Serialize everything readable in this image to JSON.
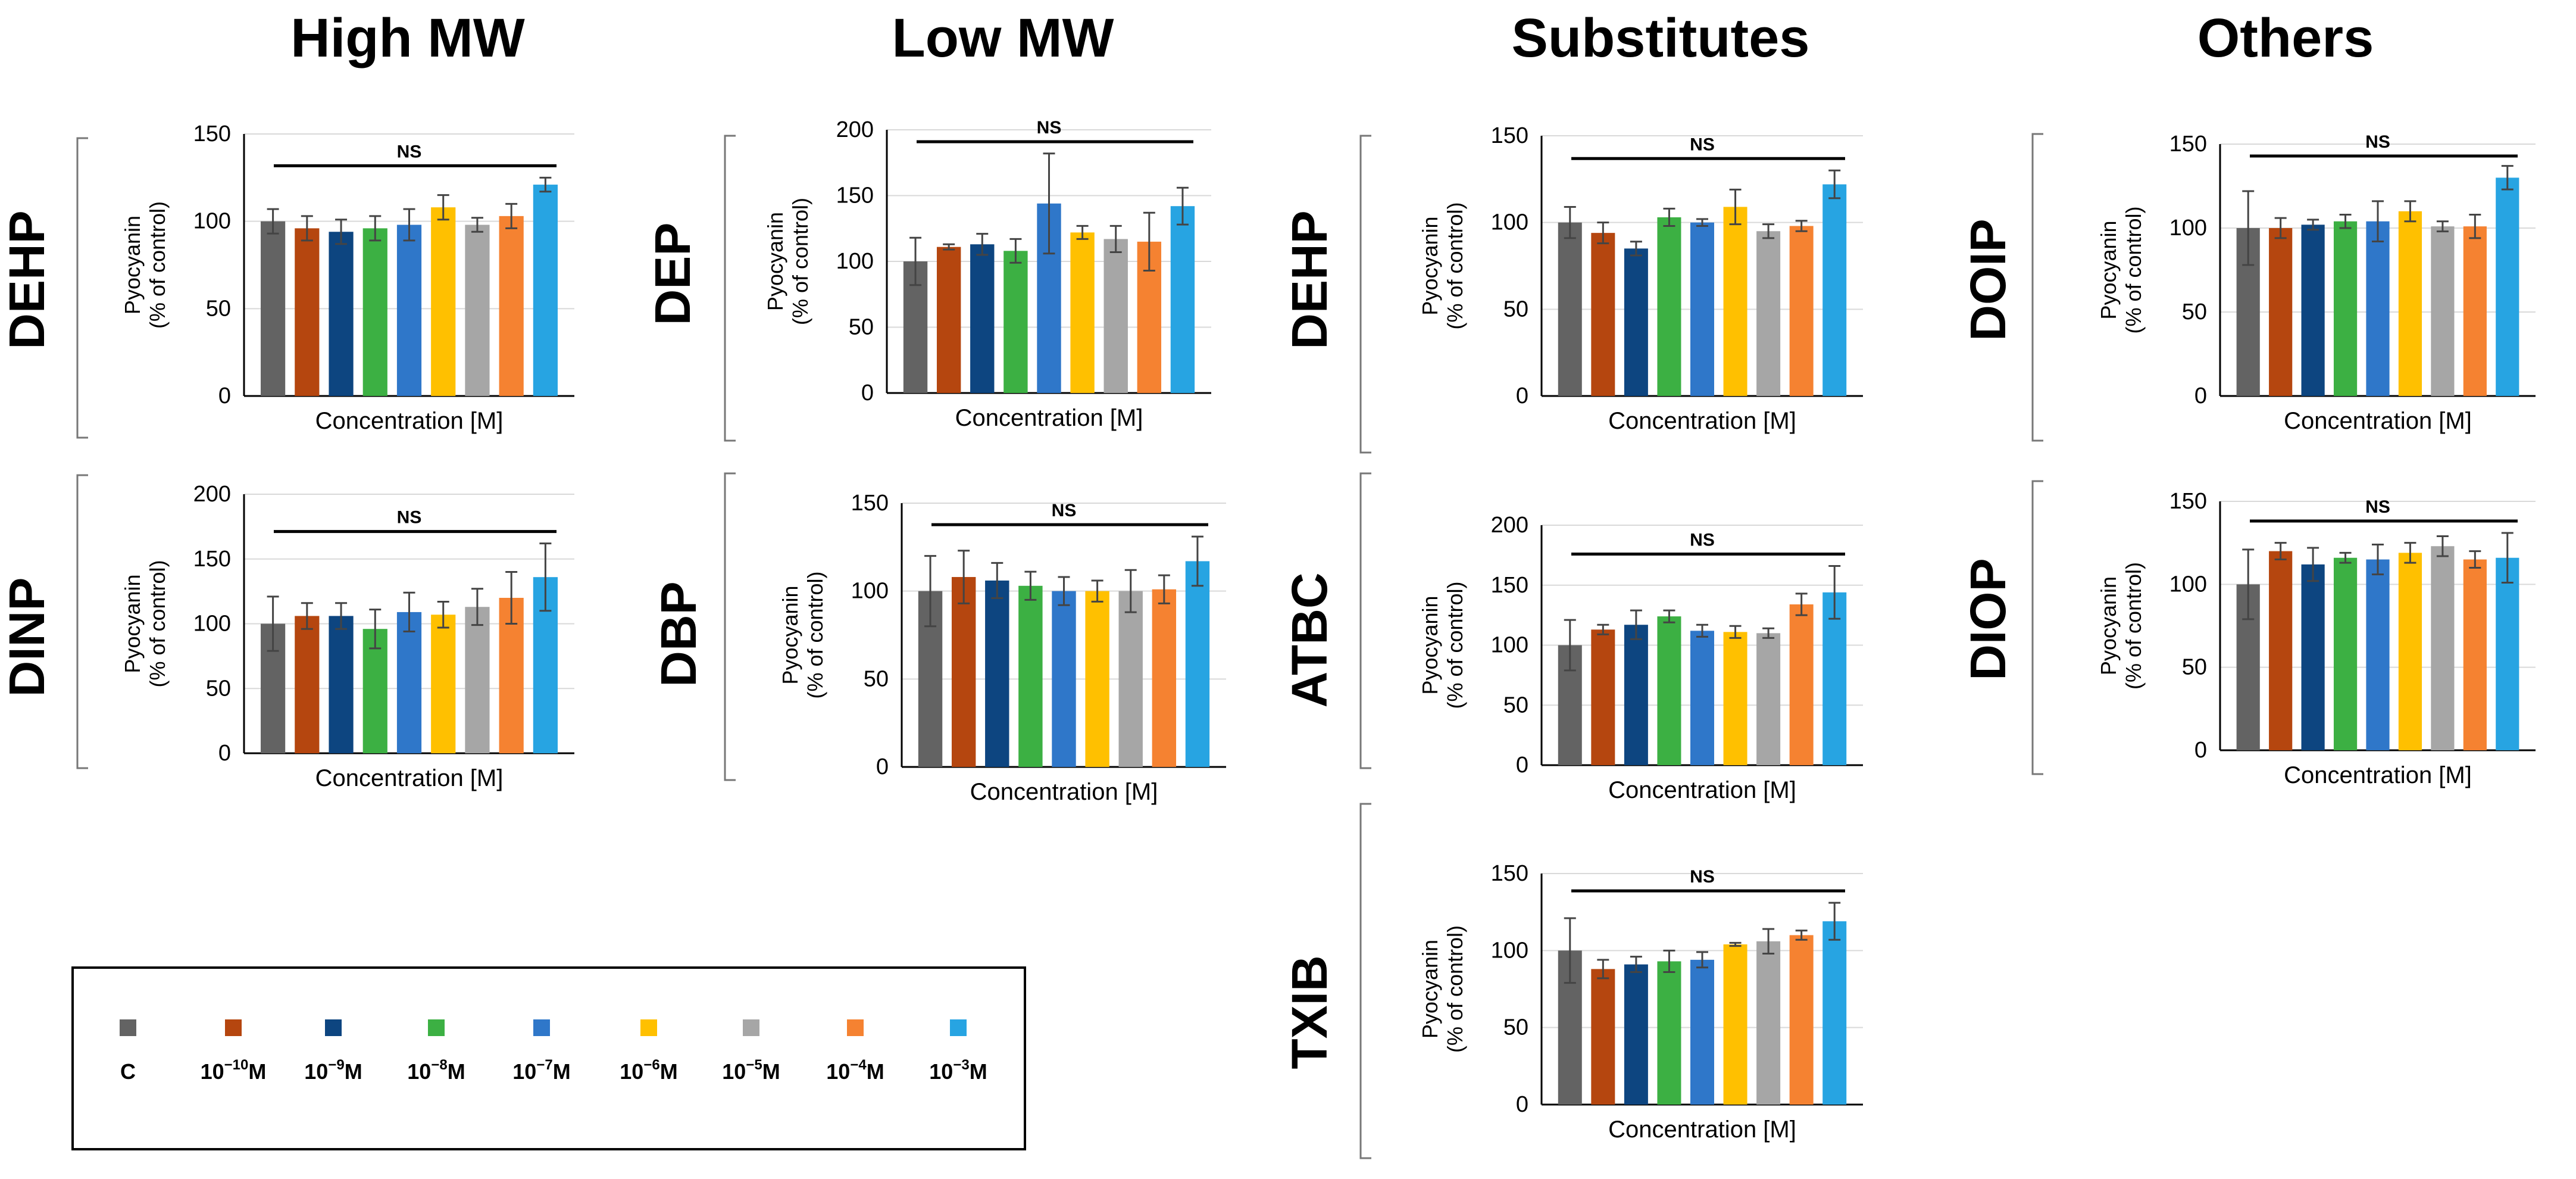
{
  "figure": {
    "group_headings": [
      "High MW",
      "Low MW",
      "Substitutes",
      "Others"
    ],
    "y_axis_label": [
      "Pyocyanin",
      "(% of control)"
    ],
    "x_axis_label": "Concentration [M]",
    "significance_label": "NS"
  },
  "legend": {
    "items": [
      {
        "label": "C",
        "sup": "",
        "color": "#636363"
      },
      {
        "label": "10",
        "sup": "−10",
        "unit": "M",
        "color": "#b5460f"
      },
      {
        "label": "10",
        "sup": "−9",
        "unit": "M",
        "color": "#0d4580"
      },
      {
        "label": "10",
        "sup": "−8",
        "unit": "M",
        "color": "#3cb043"
      },
      {
        "label": "10",
        "sup": "−7",
        "unit": "M",
        "color": "#2f77c9"
      },
      {
        "label": "10",
        "sup": "−6",
        "unit": "M",
        "color": "#ffc000"
      },
      {
        "label": "10",
        "sup": "−5",
        "unit": "M",
        "color": "#a6a6a6"
      },
      {
        "label": "10",
        "sup": "−4",
        "unit": "M",
        "color": "#f58231"
      },
      {
        "label": "10",
        "sup": "−3",
        "unit": "M",
        "color": "#27a4e2"
      }
    ]
  },
  "chart_data": [
    {
      "type": "bar",
      "group": "High MW",
      "compound": "DEHP",
      "title": "DEHP",
      "xlabel": "Concentration [M]",
      "ylabel": "Pyocyanin (% of control)",
      "ylim": [
        0,
        150
      ],
      "yticks": [
        0,
        50,
        100,
        150
      ],
      "series": [
        {
          "name": "Pyocyanin",
          "values": [
            100,
            96,
            94,
            96,
            98,
            108,
            98,
            103,
            121
          ],
          "errors": [
            7,
            7,
            7,
            7,
            9,
            7,
            4,
            7,
            4
          ]
        }
      ],
      "annotation": "NS"
    },
    {
      "type": "bar",
      "group": "High MW",
      "compound": "DINP",
      "title": "DINP",
      "xlabel": "Concentration [M]",
      "ylabel": "Pyocyanin (% of control)",
      "ylim": [
        0,
        200
      ],
      "yticks": [
        0,
        50,
        100,
        150,
        200
      ],
      "series": [
        {
          "name": "Pyocyanin",
          "values": [
            100,
            106,
            106,
            96,
            109,
            107,
            113,
            120,
            136
          ],
          "errors": [
            21,
            10,
            10,
            15,
            15,
            10,
            14,
            20,
            26
          ]
        }
      ],
      "annotation": "NS"
    },
    {
      "type": "bar",
      "group": "Low MW",
      "compound": "DEP",
      "title": "DEP",
      "xlabel": "Concentration [M]",
      "ylabel": "Pyocyanin (% of control)",
      "ylim": [
        0,
        200
      ],
      "yticks": [
        0,
        50,
        100,
        150,
        200
      ],
      "series": [
        {
          "name": "Pyocyanin",
          "values": [
            100,
            111,
            113,
            108,
            144,
            122,
            117,
            115,
            142
          ],
          "errors": [
            18,
            2,
            8,
            9,
            38,
            5,
            10,
            22,
            14
          ]
        }
      ],
      "annotation": "NS"
    },
    {
      "type": "bar",
      "group": "Low MW",
      "compound": "DBP",
      "title": "DBP",
      "xlabel": "Concentration [M]",
      "ylabel": "Pyocyanin (% of control)",
      "ylim": [
        0,
        150
      ],
      "yticks": [
        0,
        50,
        100,
        150
      ],
      "series": [
        {
          "name": "Pyocyanin",
          "values": [
            100,
            108,
            106,
            103,
            100,
            100,
            100,
            101,
            117
          ],
          "errors": [
            20,
            15,
            10,
            8,
            8,
            6,
            12,
            8,
            14
          ]
        }
      ],
      "annotation": "NS"
    },
    {
      "type": "bar",
      "group": "Substitutes",
      "compound": "DEHP",
      "title": "DEHP",
      "xlabel": "Concentration [M]",
      "ylabel": "Pyocyanin (% of control)",
      "ylim": [
        0,
        150
      ],
      "yticks": [
        0,
        50,
        100,
        150
      ],
      "series": [
        {
          "name": "Pyocyanin",
          "values": [
            100,
            94,
            85,
            103,
            100,
            109,
            95,
            98,
            122
          ],
          "errors": [
            9,
            6,
            4,
            5,
            2,
            10,
            4,
            3,
            8
          ]
        }
      ],
      "annotation": "NS"
    },
    {
      "type": "bar",
      "group": "Substitutes",
      "compound": "ATBC",
      "title": "ATBC",
      "xlabel": "Concentration [M]",
      "ylabel": "Pyocyanin (% of control)",
      "ylim": [
        0,
        200
      ],
      "yticks": [
        0,
        50,
        100,
        150,
        200
      ],
      "series": [
        {
          "name": "Pyocyanin",
          "values": [
            100,
            113,
            117,
            124,
            112,
            111,
            110,
            134,
            144
          ],
          "errors": [
            21,
            4,
            12,
            5,
            5,
            5,
            4,
            9,
            22
          ]
        }
      ],
      "annotation": "NS"
    },
    {
      "type": "bar",
      "group": "Substitutes",
      "compound": "TXIB",
      "title": "TXIB",
      "xlabel": "Concentration [M]",
      "ylabel": "Pyocyanin (% of control)",
      "ylim": [
        0,
        150
      ],
      "yticks": [
        0,
        50,
        100,
        150
      ],
      "series": [
        {
          "name": "Pyocyanin",
          "values": [
            100,
            88,
            91,
            93,
            94,
            104,
            106,
            110,
            119
          ],
          "errors": [
            21,
            6,
            5,
            7,
            5,
            1,
            8,
            3,
            12
          ]
        }
      ],
      "annotation": "NS"
    },
    {
      "type": "bar",
      "group": "Others",
      "compound": "DOIP",
      "title": "DOIP",
      "xlabel": "Concentration [M]",
      "ylabel": "Pyocyanin (% of control)",
      "ylim": [
        0,
        150
      ],
      "yticks": [
        0,
        50,
        100,
        150
      ],
      "series": [
        {
          "name": "Pyocyanin",
          "values": [
            100,
            100,
            102,
            104,
            104,
            110,
            101,
            101,
            130
          ],
          "errors": [
            22,
            6,
            3,
            4,
            12,
            6,
            3,
            7,
            7
          ]
        }
      ],
      "annotation": "NS"
    },
    {
      "type": "bar",
      "group": "Others",
      "compound": "DIOP",
      "title": "DIOP",
      "xlabel": "Concentration [M]",
      "ylabel": "Pyocyanin (% of control)",
      "ylim": [
        0,
        150
      ],
      "yticks": [
        0,
        50,
        100,
        150
      ],
      "series": [
        {
          "name": "Pyocyanin",
          "values": [
            100,
            120,
            112,
            116,
            115,
            119,
            123,
            115,
            116
          ],
          "errors": [
            21,
            5,
            10,
            3,
            9,
            6,
            6,
            5,
            15
          ]
        }
      ],
      "annotation": "NS"
    }
  ]
}
